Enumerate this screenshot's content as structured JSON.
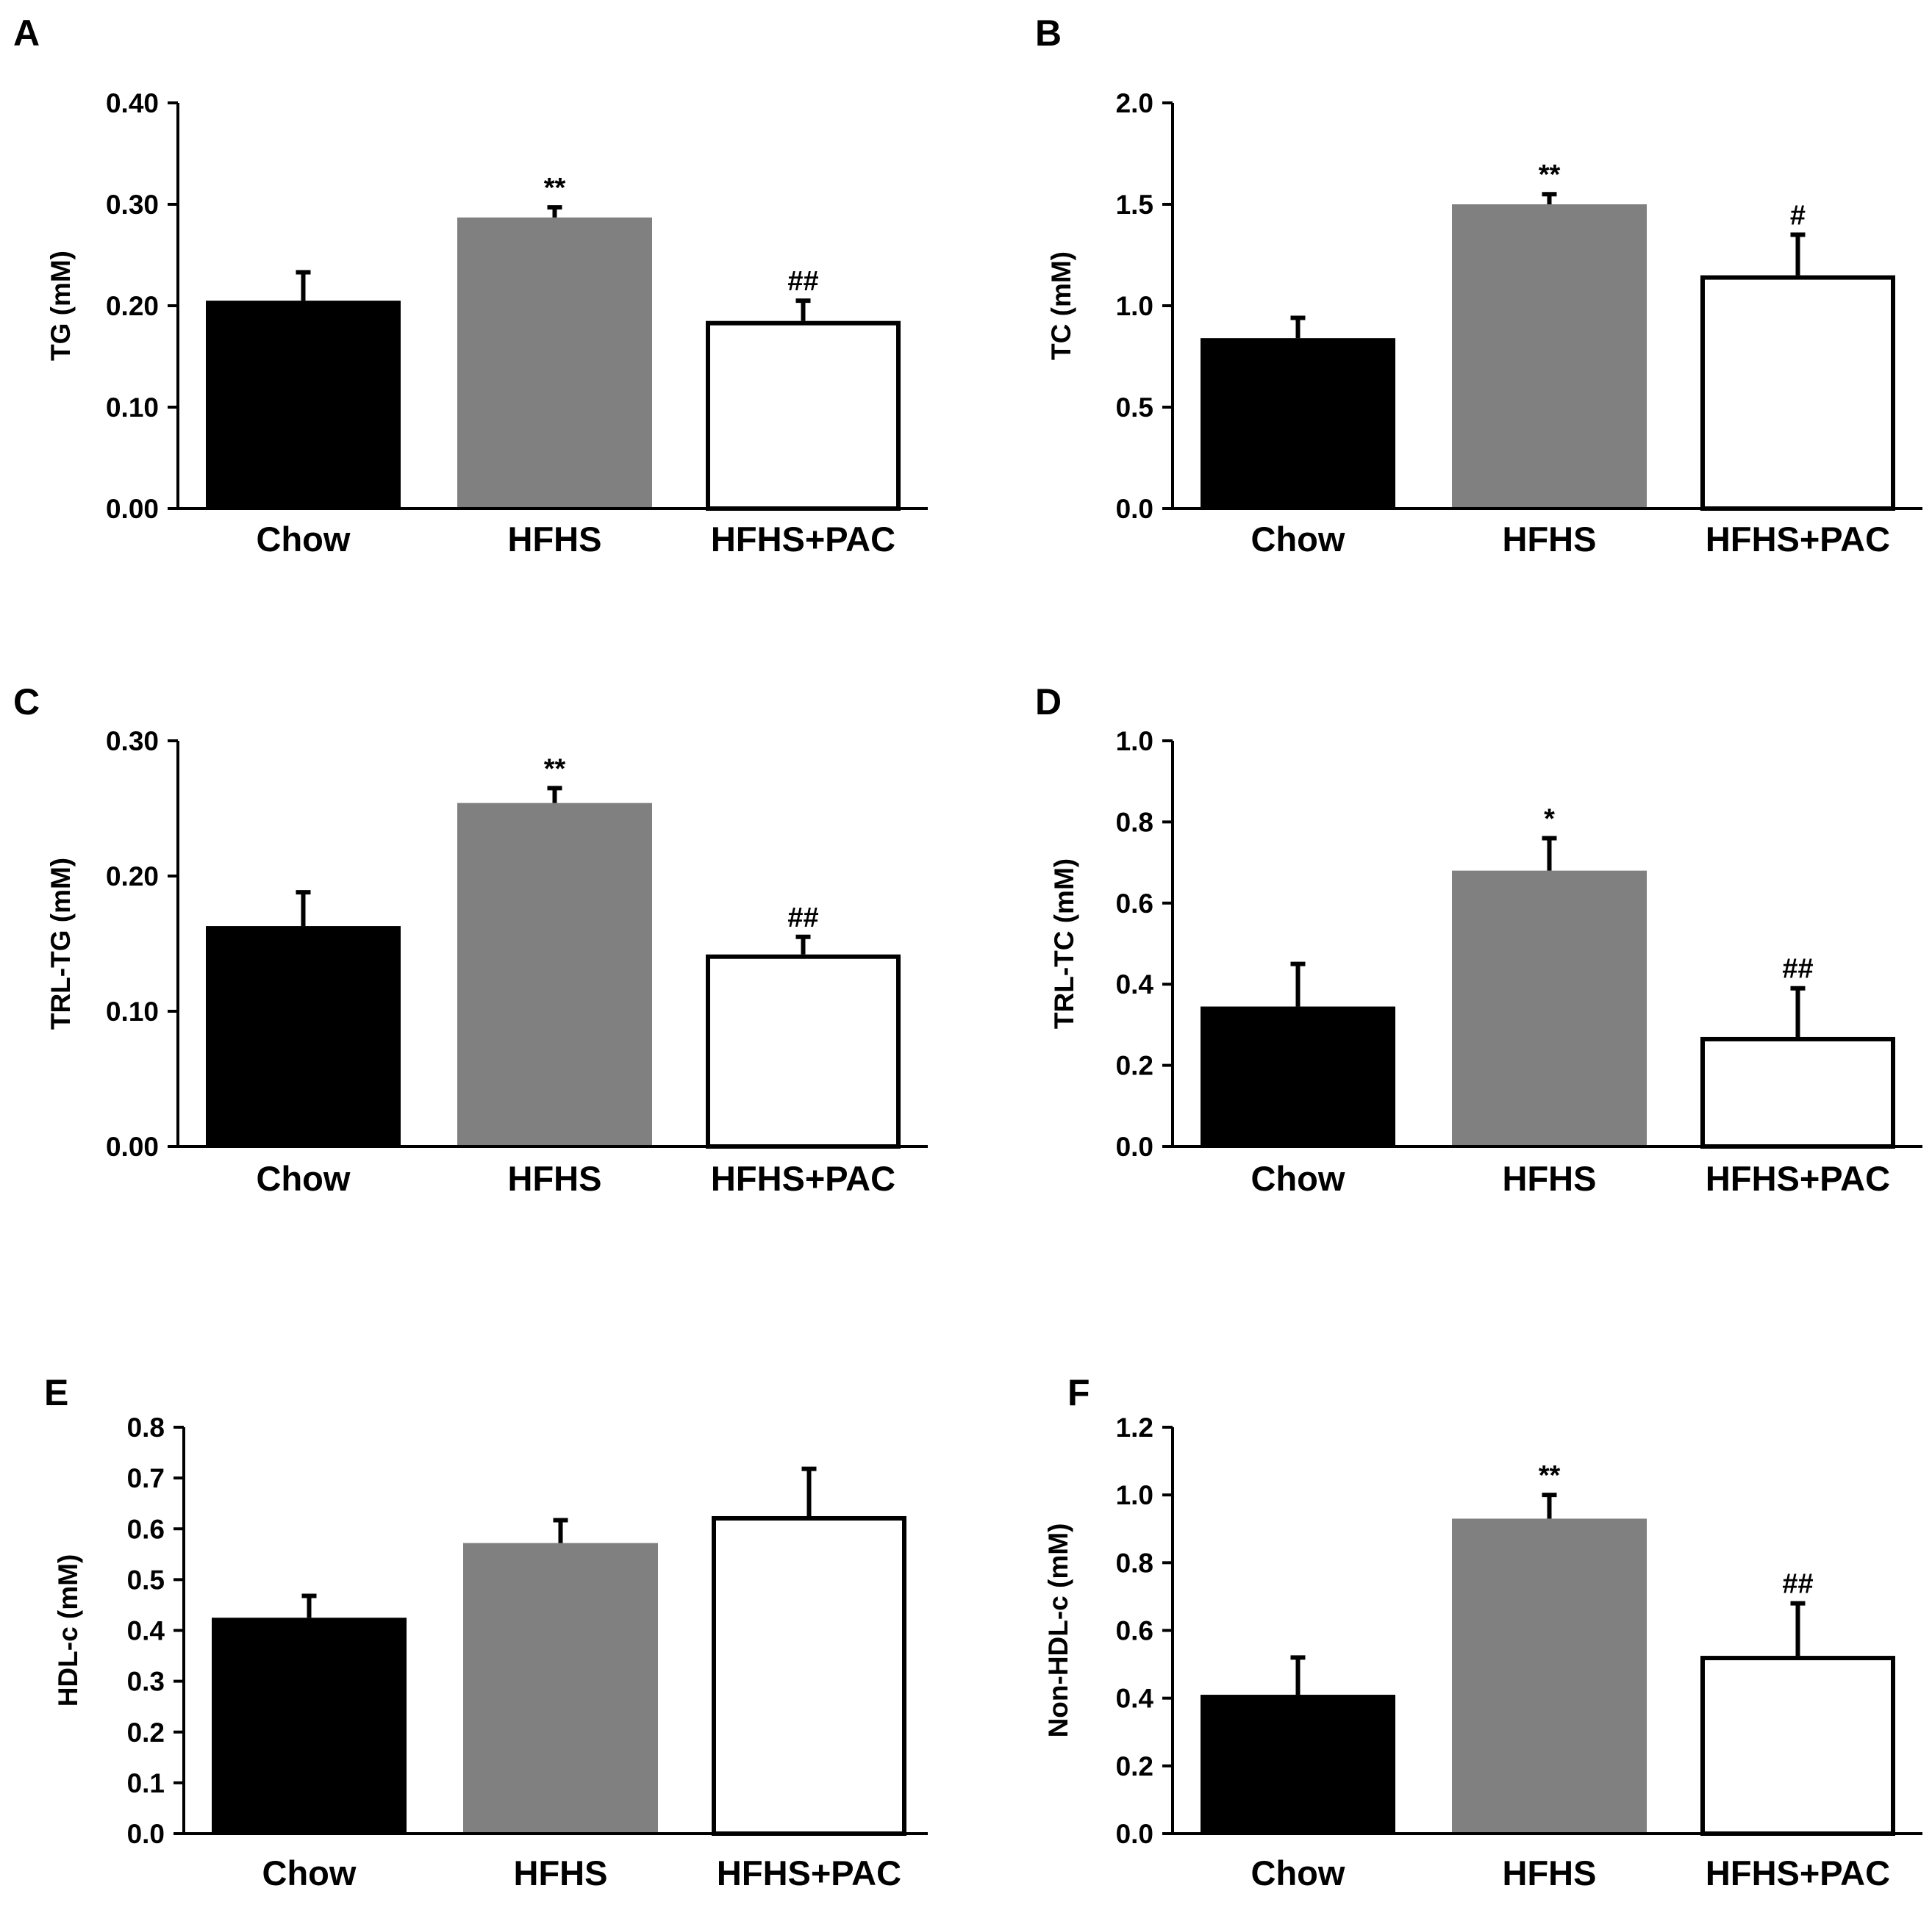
{
  "colors": {
    "Chow": "#000000",
    "HFHS": "#808080",
    "HFHS+PAC": "#ffffff",
    "axis": "#000000"
  },
  "chart_data": [
    {
      "panel": "A",
      "type": "bar",
      "categories": [
        "Chow",
        "HFHS",
        "HFHS+PAC"
      ],
      "values": [
        0.205,
        0.287,
        0.185
      ],
      "errors": [
        0.028,
        0.01,
        0.02
      ],
      "annotations": [
        "",
        "**",
        "##"
      ],
      "xlabel": "",
      "ylabel": "TG (mM)",
      "ylim": [
        0,
        0.4
      ],
      "yticks": [
        "0.00",
        "0.10",
        "0.20",
        "0.30",
        "0.40"
      ]
    },
    {
      "panel": "B",
      "type": "bar",
      "categories": [
        "Chow",
        "HFHS",
        "HFHS+PAC"
      ],
      "values": [
        0.84,
        1.5,
        1.15
      ],
      "errors": [
        0.1,
        0.05,
        0.2
      ],
      "annotations": [
        "",
        "**",
        "#"
      ],
      "xlabel": "",
      "ylabel": "TC (mM)",
      "ylim": [
        0,
        2.0
      ],
      "yticks": [
        "0.0",
        "0.5",
        "1.0",
        "1.5",
        "2.0"
      ]
    },
    {
      "panel": "C",
      "type": "bar",
      "categories": [
        "Chow",
        "HFHS",
        "HFHS+PAC"
      ],
      "values": [
        0.163,
        0.254,
        0.142
      ],
      "errors": [
        0.025,
        0.011,
        0.013
      ],
      "annotations": [
        "",
        "**",
        "##"
      ],
      "xlabel": "",
      "ylabel": "TRL-TG  (mM)",
      "ylim": [
        0,
        0.3
      ],
      "yticks": [
        "0.00",
        "0.10",
        "0.20",
        "0.30"
      ]
    },
    {
      "panel": "D",
      "type": "bar",
      "categories": [
        "Chow",
        "HFHS",
        "HFHS+PAC"
      ],
      "values": [
        0.345,
        0.68,
        0.27
      ],
      "errors": [
        0.105,
        0.08,
        0.12
      ],
      "annotations": [
        "",
        "*",
        "##"
      ],
      "xlabel": "",
      "ylabel": "TRL-TC  (mM)",
      "ylim": [
        0,
        1.0
      ],
      "yticks": [
        "0.0",
        "0.2",
        "0.4",
        "0.6",
        "0.8",
        "1.0"
      ]
    },
    {
      "panel": "E",
      "type": "bar",
      "categories": [
        "Chow",
        "HFHS",
        "HFHS+PAC"
      ],
      "values": [
        0.425,
        0.572,
        0.625
      ],
      "errors": [
        0.043,
        0.045,
        0.093
      ],
      "annotations": [
        "",
        "",
        ""
      ],
      "xlabel": "",
      "ylabel": "HDL-c (mM)",
      "ylim": [
        0,
        0.8
      ],
      "yticks": [
        "0.0",
        "0.1",
        "0.2",
        "0.3",
        "0.4",
        "0.5",
        "0.6",
        "0.7",
        "0.8"
      ]
    },
    {
      "panel": "F",
      "type": "bar",
      "categories": [
        "Chow",
        "HFHS",
        "HFHS+PAC"
      ],
      "values": [
        0.41,
        0.93,
        0.525
      ],
      "errors": [
        0.11,
        0.07,
        0.155
      ],
      "annotations": [
        "",
        "**",
        "##"
      ],
      "xlabel": "",
      "ylabel": "Non-HDL-c (mM)",
      "ylim": [
        0,
        1.2
      ],
      "yticks": [
        "0.0",
        "0.2",
        "0.4",
        "0.6",
        "0.8",
        "1.0",
        "1.2"
      ]
    }
  ]
}
